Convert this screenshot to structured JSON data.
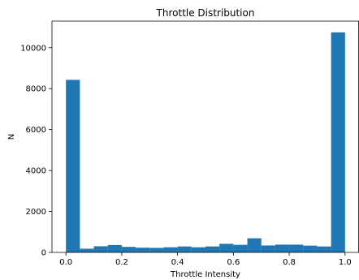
{
  "chart_data": {
    "type": "bar",
    "title": "Throttle Distribution",
    "xlabel": "Throttle Intensity",
    "ylabel": "N",
    "xlim": [
      -0.05,
      1.05
    ],
    "ylim": [
      0,
      11300
    ],
    "xticks": [
      0.0,
      0.2,
      0.4,
      0.6,
      0.8,
      1.0
    ],
    "xtick_labels": [
      "0.0",
      "0.2",
      "0.4",
      "0.6",
      "0.8",
      "1.0"
    ],
    "yticks": [
      0,
      2000,
      4000,
      6000,
      8000,
      10000
    ],
    "ytick_labels": [
      "0",
      "2000",
      "4000",
      "6000",
      "8000",
      "10000"
    ],
    "bin_width": 0.05,
    "bins": [
      {
        "x0": 0.0,
        "x1": 0.05,
        "value": 8430
      },
      {
        "x0": 0.05,
        "x1": 0.1,
        "value": 180
      },
      {
        "x0": 0.1,
        "x1": 0.15,
        "value": 300
      },
      {
        "x0": 0.15,
        "x1": 0.2,
        "value": 360
      },
      {
        "x0": 0.2,
        "x1": 0.25,
        "value": 270
      },
      {
        "x0": 0.25,
        "x1": 0.3,
        "value": 230
      },
      {
        "x0": 0.3,
        "x1": 0.35,
        "value": 220
      },
      {
        "x0": 0.35,
        "x1": 0.4,
        "value": 250
      },
      {
        "x0": 0.4,
        "x1": 0.45,
        "value": 290
      },
      {
        "x0": 0.45,
        "x1": 0.5,
        "value": 250
      },
      {
        "x0": 0.5,
        "x1": 0.55,
        "value": 290
      },
      {
        "x0": 0.55,
        "x1": 0.6,
        "value": 420
      },
      {
        "x0": 0.6,
        "x1": 0.65,
        "value": 370
      },
      {
        "x0": 0.65,
        "x1": 0.7,
        "value": 690
      },
      {
        "x0": 0.7,
        "x1": 0.75,
        "value": 340
      },
      {
        "x0": 0.75,
        "x1": 0.8,
        "value": 380
      },
      {
        "x0": 0.8,
        "x1": 0.85,
        "value": 380
      },
      {
        "x0": 0.85,
        "x1": 0.9,
        "value": 330
      },
      {
        "x0": 0.9,
        "x1": 0.95,
        "value": 290
      },
      {
        "x0": 0.95,
        "x1": 1.0,
        "value": 10750
      }
    ],
    "bar_color": "#1f77b4",
    "grid": false,
    "legend": "none"
  }
}
